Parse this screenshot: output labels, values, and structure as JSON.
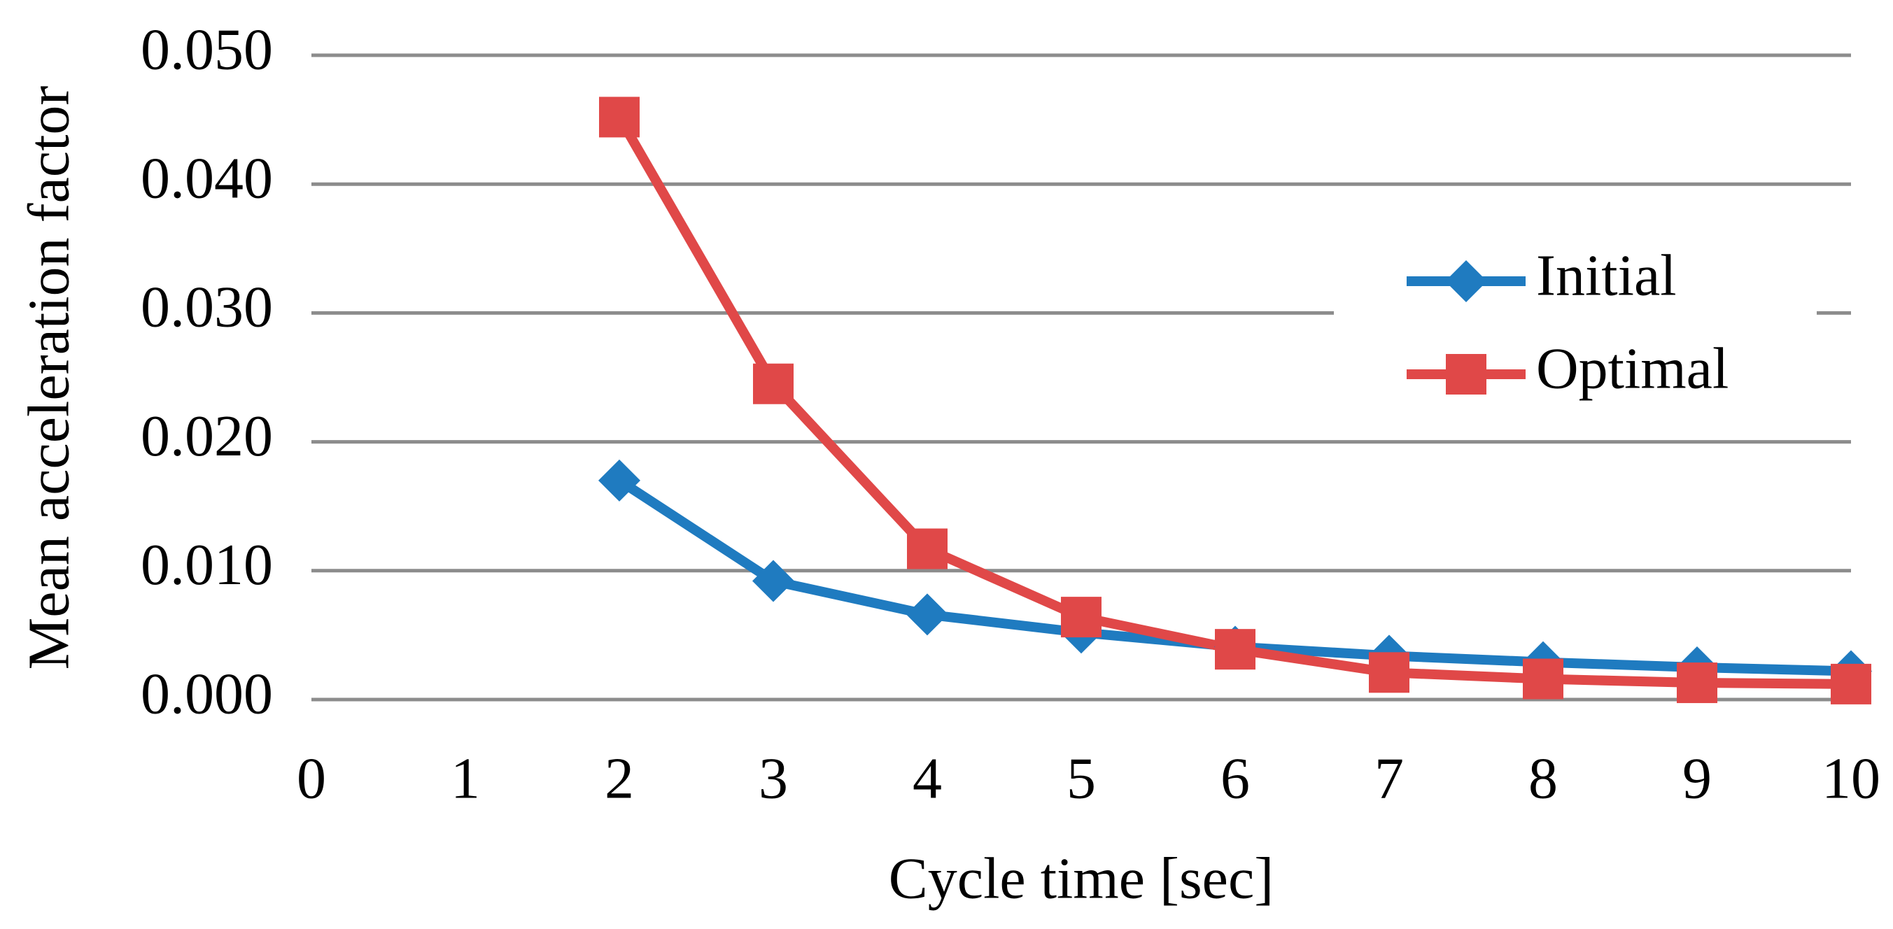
{
  "chart_data": {
    "type": "line",
    "x_label": "Cycle time [sec]",
    "y_label": "Mean acceleration factor",
    "x": [
      2,
      3,
      4,
      5,
      6,
      7,
      8,
      9,
      10
    ],
    "series": [
      {
        "name": "Initial",
        "color": "#1f7bc0",
        "marker": "diamond",
        "values": [
          0.017,
          0.0092,
          0.0066,
          0.0052,
          0.0041,
          0.0034,
          0.0029,
          0.0025,
          0.0022
        ]
      },
      {
        "name": "Optimal",
        "color": "#e04848",
        "marker": "square",
        "values": [
          0.0452,
          0.0245,
          0.0117,
          0.0064,
          0.0039,
          0.0021,
          0.0016,
          0.0013,
          0.0012
        ]
      }
    ],
    "xlim": [
      0,
      10
    ],
    "xticks": [
      0,
      1,
      2,
      3,
      4,
      5,
      6,
      7,
      8,
      9,
      10
    ],
    "ylim": [
      0,
      0.05
    ],
    "yticks": [
      {
        "value": 0,
        "label": "0.000"
      },
      {
        "value": 0.01,
        "label": "0.010"
      },
      {
        "value": 0.02,
        "label": "0.020"
      },
      {
        "value": 0.03,
        "label": "0.030"
      },
      {
        "value": 0.04,
        "label": "0.040"
      },
      {
        "value": 0.05,
        "label": "0.050"
      }
    ],
    "grid": true,
    "legend": "right"
  }
}
